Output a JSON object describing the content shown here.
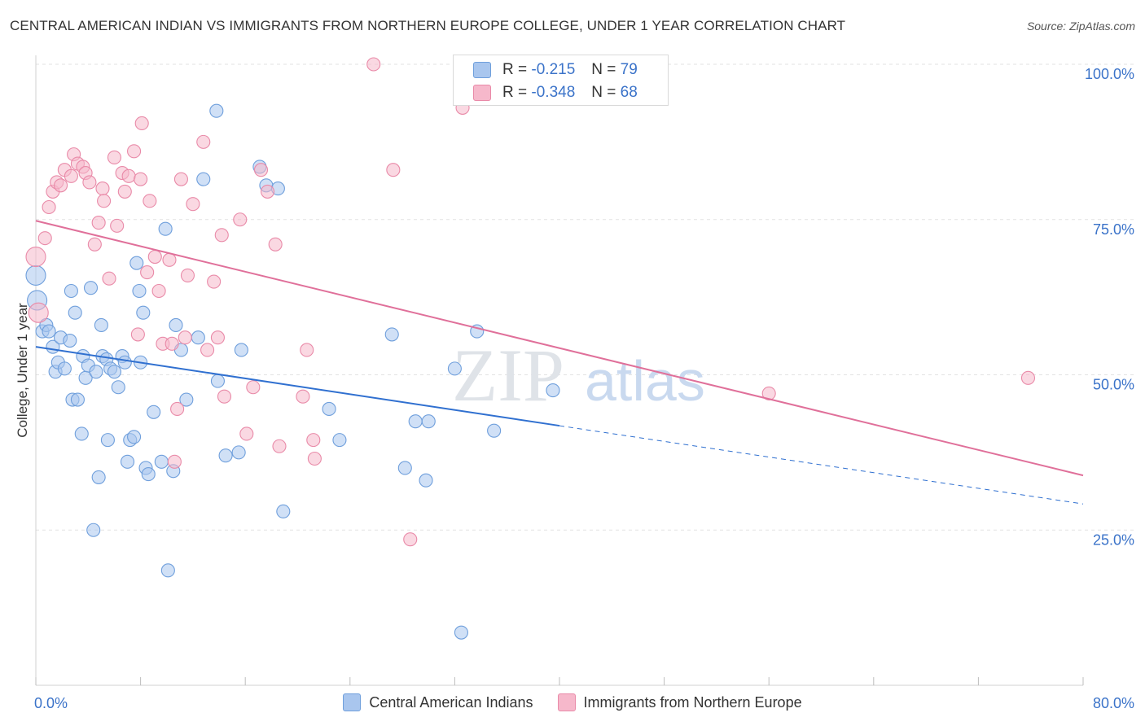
{
  "title": "CENTRAL AMERICAN INDIAN VS IMMIGRANTS FROM NORTHERN EUROPE COLLEGE, UNDER 1 YEAR CORRELATION CHART",
  "source": "Source: ZipAtlas.com",
  "watermark": {
    "zip": "ZIP",
    "atlas": "atlas"
  },
  "stats": [
    {
      "r_label": "R =",
      "r_value": "-0.215",
      "n_label": "N =",
      "n_value": "79",
      "color": "#a9c6ee",
      "border": "#6f9fdc"
    },
    {
      "r_label": "R =",
      "r_value": "-0.348",
      "n_label": "N =",
      "n_value": "68",
      "color": "#f6b8cb",
      "border": "#e98aa8"
    }
  ],
  "legend": [
    {
      "label": "Central American Indians",
      "color": "#a9c6ee",
      "border": "#6f9fdc"
    },
    {
      "label": "Immigrants from Northern Europe",
      "color": "#f6b8cb",
      "border": "#e98aa8"
    }
  ],
  "chart_data": {
    "type": "scatter",
    "xlabel": "",
    "ylabel": "College, Under 1 year",
    "xlim": [
      0,
      80
    ],
    "ylim": [
      0,
      105
    ],
    "x_tick_labels": [
      {
        "value": 0,
        "label": "0.0%"
      },
      {
        "value": 80,
        "label": "80.0%"
      }
    ],
    "y_tick_labels": [
      {
        "value": 25,
        "label": "25.0%"
      },
      {
        "value": 50,
        "label": "50.0%"
      },
      {
        "value": 75,
        "label": "75.0%"
      },
      {
        "value": 100,
        "label": "100.0%"
      }
    ],
    "series": [
      {
        "name": "Central American Indians",
        "color": "#6f9fdc",
        "fill": "#a9c6ee",
        "line_color": "#3070d0",
        "trend": {
          "x_start": 0,
          "y_start": 54.5,
          "x_end": 40,
          "y_end": 41.8,
          "dash_x_end": 80,
          "dash_y_end": 29.2
        },
        "points": [
          [
            0.0,
            66.0
          ],
          [
            0.1,
            62.0
          ],
          [
            0.5,
            57.0
          ],
          [
            0.8,
            58.0
          ],
          [
            1.0,
            57.0
          ],
          [
            1.3,
            54.5
          ],
          [
            1.5,
            50.5
          ],
          [
            1.7,
            52.0
          ],
          [
            1.9,
            56.0
          ],
          [
            2.2,
            51.0
          ],
          [
            2.6,
            55.5
          ],
          [
            2.7,
            63.5
          ],
          [
            2.8,
            46.0
          ],
          [
            3.0,
            60.0
          ],
          [
            3.2,
            46.0
          ],
          [
            3.5,
            40.5
          ],
          [
            3.6,
            53.0
          ],
          [
            3.8,
            49.5
          ],
          [
            4.0,
            51.5
          ],
          [
            4.2,
            64.0
          ],
          [
            4.4,
            25.0
          ],
          [
            4.6,
            50.5
          ],
          [
            4.8,
            33.5
          ],
          [
            5.0,
            58.0
          ],
          [
            5.1,
            53.0
          ],
          [
            5.4,
            52.5
          ],
          [
            5.5,
            39.5
          ],
          [
            5.7,
            51.0
          ],
          [
            6.0,
            50.5
          ],
          [
            6.3,
            48.0
          ],
          [
            6.6,
            53.0
          ],
          [
            6.8,
            52.0
          ],
          [
            7.0,
            36.0
          ],
          [
            7.2,
            39.5
          ],
          [
            7.5,
            40.0
          ],
          [
            7.7,
            68.0
          ],
          [
            7.9,
            63.5
          ],
          [
            8.0,
            52.0
          ],
          [
            8.2,
            60.0
          ],
          [
            8.4,
            35.0
          ],
          [
            8.6,
            34.0
          ],
          [
            9.0,
            44.0
          ],
          [
            9.6,
            36.0
          ],
          [
            9.9,
            73.5
          ],
          [
            10.1,
            18.5
          ],
          [
            10.5,
            34.5
          ],
          [
            10.7,
            58.0
          ],
          [
            11.1,
            54.0
          ],
          [
            11.5,
            46.0
          ],
          [
            12.4,
            56.0
          ],
          [
            12.8,
            81.5
          ],
          [
            13.8,
            92.5
          ],
          [
            13.9,
            49.0
          ],
          [
            14.5,
            37.0
          ],
          [
            15.5,
            37.5
          ],
          [
            15.7,
            54.0
          ],
          [
            17.1,
            83.5
          ],
          [
            17.6,
            80.5
          ],
          [
            18.5,
            80.0
          ],
          [
            18.9,
            28.0
          ],
          [
            22.4,
            44.5
          ],
          [
            23.2,
            39.5
          ],
          [
            27.2,
            56.5
          ],
          [
            28.2,
            35.0
          ],
          [
            29.0,
            42.5
          ],
          [
            30.0,
            42.5
          ],
          [
            29.8,
            33.0
          ],
          [
            32.0,
            51.0
          ],
          [
            32.5,
            8.5
          ],
          [
            33.7,
            57.0
          ],
          [
            35.0,
            41.0
          ],
          [
            39.5,
            47.5
          ]
        ]
      },
      {
        "name": "Immigrants from Northern Europe",
        "color": "#e98aa8",
        "fill": "#f6b8cb",
        "line_color": "#e0709a",
        "trend": {
          "x_start": 0,
          "y_start": 74.8,
          "x_end": 80,
          "y_end": 33.8
        },
        "points": [
          [
            0.0,
            69.0
          ],
          [
            0.2,
            60.0
          ],
          [
            0.7,
            72.0
          ],
          [
            1.0,
            77.0
          ],
          [
            1.3,
            79.5
          ],
          [
            1.6,
            81.0
          ],
          [
            1.9,
            80.5
          ],
          [
            2.2,
            83.0
          ],
          [
            2.7,
            82.0
          ],
          [
            2.9,
            85.5
          ],
          [
            3.2,
            84.0
          ],
          [
            3.6,
            83.5
          ],
          [
            3.8,
            82.5
          ],
          [
            4.1,
            81.0
          ],
          [
            4.5,
            71.0
          ],
          [
            4.8,
            74.5
          ],
          [
            5.1,
            80.0
          ],
          [
            5.2,
            78.0
          ],
          [
            5.6,
            65.5
          ],
          [
            6.0,
            85.0
          ],
          [
            6.2,
            74.0
          ],
          [
            6.6,
            82.5
          ],
          [
            6.8,
            79.5
          ],
          [
            7.1,
            82.0
          ],
          [
            7.5,
            86.0
          ],
          [
            7.8,
            56.5
          ],
          [
            8.0,
            81.5
          ],
          [
            8.1,
            90.5
          ],
          [
            8.5,
            66.5
          ],
          [
            8.7,
            78.0
          ],
          [
            9.1,
            69.0
          ],
          [
            9.4,
            63.5
          ],
          [
            9.7,
            55.0
          ],
          [
            10.2,
            68.5
          ],
          [
            10.4,
            55.0
          ],
          [
            10.6,
            36.0
          ],
          [
            10.8,
            44.5
          ],
          [
            11.1,
            81.5
          ],
          [
            11.4,
            56.0
          ],
          [
            11.6,
            66.0
          ],
          [
            12.0,
            77.5
          ],
          [
            12.8,
            87.5
          ],
          [
            13.1,
            54.0
          ],
          [
            13.6,
            65.0
          ],
          [
            13.9,
            56.0
          ],
          [
            14.2,
            72.5
          ],
          [
            14.4,
            46.5
          ],
          [
            15.6,
            75.0
          ],
          [
            16.1,
            40.5
          ],
          [
            16.6,
            48.0
          ],
          [
            17.2,
            83.0
          ],
          [
            17.7,
            79.5
          ],
          [
            18.3,
            71.0
          ],
          [
            18.6,
            38.5
          ],
          [
            20.4,
            46.5
          ],
          [
            20.7,
            54.0
          ],
          [
            21.2,
            39.5
          ],
          [
            21.3,
            36.5
          ],
          [
            25.8,
            100.0
          ],
          [
            27.3,
            83.0
          ],
          [
            28.6,
            23.5
          ],
          [
            32.6,
            93.0
          ],
          [
            56.0,
            47.0
          ],
          [
            75.8,
            49.5
          ]
        ]
      }
    ]
  }
}
